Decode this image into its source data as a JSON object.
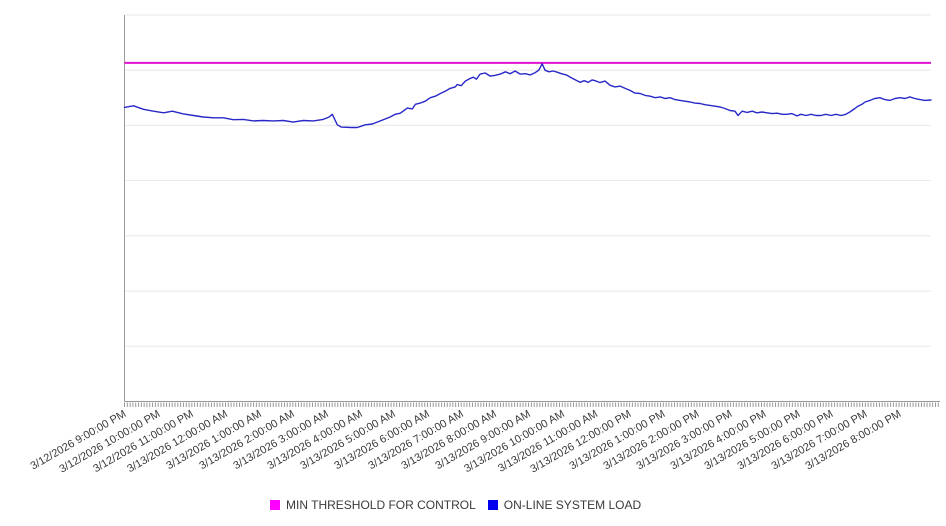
{
  "colors": {
    "background": "#ffffff",
    "threshold_line": "#e011d0",
    "load_line": "#2828c8",
    "gridline": "#e8e8e8",
    "axis": "#9a9a9a",
    "tick": "#999999",
    "label_text": "#3a3a3a"
  },
  "legend": {
    "items": [
      {
        "label": "MIN THRESHOLD FOR CONTROL",
        "color": "#ff00ff"
      },
      {
        "label": "ON-LINE SYSTEM LOAD",
        "color": "#0000ee"
      }
    ]
  },
  "chart_data": {
    "type": "line",
    "title": "",
    "xlabel": "",
    "ylabel": "",
    "legend_position": "bottom-center",
    "grid": "horizontal-only",
    "x_axis": {
      "range_hours": [
        0,
        23.95
      ],
      "minor_ticks_per_hour": 12,
      "tick_labels": [
        "3/12/2026 9:00:00 PM",
        "3/12/2026 10:00:00 PM",
        "3/12/2026 11:00:00 PM",
        "3/13/2026 12:00:00 AM",
        "3/13/2026 1:00:00 AM",
        "3/13/2026 2:00:00 AM",
        "3/13/2026 3:00:00 AM",
        "3/13/2026 4:00:00 AM",
        "3/13/2026 5:00:00 AM",
        "3/13/2026 6:00:00 AM",
        "3/13/2026 7:00:00 AM",
        "3/13/2026 8:00:00 AM",
        "3/13/2026 9:00:00 AM",
        "3/13/2026 10:00:00 AM",
        "3/13/2026 11:00:00 AM",
        "3/13/2026 12:00:00 PM",
        "3/13/2026 1:00:00 PM",
        "3/13/2026 2:00:00 PM",
        "3/13/2026 3:00:00 PM",
        "3/13/2026 4:00:00 PM",
        "3/13/2026 5:00:00 PM",
        "3/13/2026 6:00:00 PM",
        "3/13/2026 7:00:00 PM",
        "3/13/2026 8:00:00 PM"
      ]
    },
    "y_axis": {
      "tick_labels_visible": false,
      "ylim": [
        0,
        100
      ],
      "horizontal_gridlines": 7
    },
    "series": [
      {
        "name": "MIN THRESHOLD FOR CONTROL",
        "type": "threshold",
        "value": 87.6,
        "color": "#e011d0",
        "legend_color": "#ff00ff"
      },
      {
        "name": "ON-LINE SYSTEM LOAD",
        "type": "line",
        "color": "#2828c8",
        "legend_color": "#0000ee",
        "x_unit": "hours from 3/12/2026 9:00:00 PM",
        "points": [
          [
            0,
            76.1
          ],
          [
            0.27,
            76.5
          ],
          [
            0.56,
            75.6
          ],
          [
            0.86,
            75.1
          ],
          [
            1.16,
            74.7
          ],
          [
            1.42,
            75.1
          ],
          [
            1.75,
            74.4
          ],
          [
            2.05,
            74
          ],
          [
            2.34,
            73.6
          ],
          [
            2.64,
            73.4
          ],
          [
            2.94,
            73.4
          ],
          [
            3.23,
            72.9
          ],
          [
            3.53,
            73
          ],
          [
            3.83,
            72.6
          ],
          [
            4.12,
            72.7
          ],
          [
            4.42,
            72.6
          ],
          [
            4.72,
            72.7
          ],
          [
            5.01,
            72.3
          ],
          [
            5.31,
            72.7
          ],
          [
            5.61,
            72.6
          ],
          [
            5.9,
            73
          ],
          [
            6.08,
            73.6
          ],
          [
            6.17,
            74.3
          ],
          [
            6.32,
            71.6
          ],
          [
            6.44,
            71
          ],
          [
            6.74,
            70.9
          ],
          [
            6.91,
            70.9
          ],
          [
            7.15,
            71.6
          ],
          [
            7.36,
            71.8
          ],
          [
            7.6,
            72.6
          ],
          [
            7.89,
            73.6
          ],
          [
            8.04,
            74.3
          ],
          [
            8.19,
            74.6
          ],
          [
            8.4,
            75.9
          ],
          [
            8.55,
            75.7
          ],
          [
            8.64,
            76.9
          ],
          [
            8.78,
            77.2
          ],
          [
            8.93,
            77.7
          ],
          [
            9.08,
            78.6
          ],
          [
            9.23,
            79
          ],
          [
            9.38,
            79.7
          ],
          [
            9.53,
            80.3
          ],
          [
            9.67,
            81
          ],
          [
            9.82,
            81.4
          ],
          [
            9.88,
            82
          ],
          [
            10,
            81.7
          ],
          [
            10.12,
            82.9
          ],
          [
            10.27,
            83.6
          ],
          [
            10.36,
            83.9
          ],
          [
            10.45,
            83.4
          ],
          [
            10.56,
            84.7
          ],
          [
            10.71,
            85
          ],
          [
            10.86,
            84.2
          ],
          [
            11.01,
            84.4
          ],
          [
            11.16,
            84.7
          ],
          [
            11.31,
            85.3
          ],
          [
            11.45,
            84.8
          ],
          [
            11.6,
            85.5
          ],
          [
            11.75,
            84.7
          ],
          [
            11.9,
            84.8
          ],
          [
            12.05,
            84.5
          ],
          [
            12.2,
            85.1
          ],
          [
            12.31,
            85.8
          ],
          [
            12.4,
            87.4
          ],
          [
            12.49,
            85.7
          ],
          [
            12.61,
            85.3
          ],
          [
            12.73,
            85.5
          ],
          [
            12.85,
            85.2
          ],
          [
            12.97,
            84.8
          ],
          [
            13.12,
            84.5
          ],
          [
            13.26,
            83.8
          ],
          [
            13.41,
            83.1
          ],
          [
            13.53,
            82.6
          ],
          [
            13.65,
            83
          ],
          [
            13.77,
            82.6
          ],
          [
            13.89,
            83.2
          ],
          [
            14.01,
            82.9
          ],
          [
            14.12,
            82.5
          ],
          [
            14.27,
            82.9
          ],
          [
            14.42,
            81.8
          ],
          [
            14.57,
            81.4
          ],
          [
            14.72,
            81.6
          ],
          [
            14.87,
            81
          ],
          [
            15.01,
            80.5
          ],
          [
            15.16,
            79.8
          ],
          [
            15.31,
            79.7
          ],
          [
            15.46,
            79.2
          ],
          [
            15.61,
            79
          ],
          [
            15.76,
            78.6
          ],
          [
            15.91,
            78.8
          ],
          [
            16.05,
            78.4
          ],
          [
            16.2,
            78.6
          ],
          [
            16.35,
            78.1
          ],
          [
            16.5,
            77.9
          ],
          [
            16.65,
            77.7
          ],
          [
            16.8,
            77.5
          ],
          [
            16.94,
            77.2
          ],
          [
            17.09,
            77.1
          ],
          [
            17.24,
            76.8
          ],
          [
            17.39,
            76.6
          ],
          [
            17.54,
            76.4
          ],
          [
            17.69,
            76.2
          ],
          [
            17.83,
            75.8
          ],
          [
            17.98,
            75.3
          ],
          [
            18.13,
            75.1
          ],
          [
            18.22,
            74
          ],
          [
            18.34,
            75.1
          ],
          [
            18.49,
            74.8
          ],
          [
            18.64,
            75.1
          ],
          [
            18.78,
            74.7
          ],
          [
            18.93,
            74.9
          ],
          [
            19.08,
            74.7
          ],
          [
            19.23,
            74.5
          ],
          [
            19.38,
            74.6
          ],
          [
            19.53,
            74.3
          ],
          [
            19.67,
            74.3
          ],
          [
            19.82,
            74.5
          ],
          [
            19.97,
            73.9
          ],
          [
            20.09,
            74.3
          ],
          [
            20.24,
            74
          ],
          [
            20.39,
            74.3
          ],
          [
            20.53,
            74
          ],
          [
            20.68,
            74
          ],
          [
            20.83,
            74.3
          ],
          [
            20.98,
            74
          ],
          [
            21.13,
            74.3
          ],
          [
            21.28,
            74
          ],
          [
            21.42,
            74.3
          ],
          [
            21.54,
            74.9
          ],
          [
            21.69,
            75.8
          ],
          [
            21.78,
            76.4
          ],
          [
            21.9,
            76.9
          ],
          [
            21.99,
            77.5
          ],
          [
            22.14,
            77.9
          ],
          [
            22.28,
            78.4
          ],
          [
            22.43,
            78.6
          ],
          [
            22.58,
            78.1
          ],
          [
            22.73,
            77.9
          ],
          [
            22.88,
            78.4
          ],
          [
            23.03,
            78.6
          ],
          [
            23.18,
            78.4
          ],
          [
            23.32,
            78.8
          ],
          [
            23.47,
            78.4
          ],
          [
            23.62,
            78.1
          ],
          [
            23.77,
            77.9
          ],
          [
            23.95,
            78
          ]
        ]
      }
    ]
  }
}
